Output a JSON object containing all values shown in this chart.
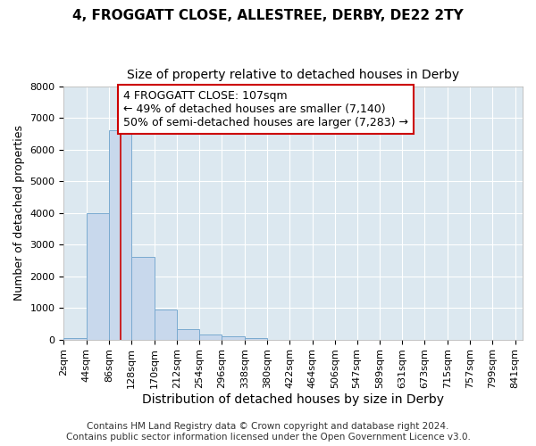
{
  "title": "4, FROGGATT CLOSE, ALLESTREE, DERBY, DE22 2TY",
  "subtitle": "Size of property relative to detached houses in Derby",
  "xlabel": "Distribution of detached houses by size in Derby",
  "ylabel": "Number of detached properties",
  "bar_left_edges": [
    2,
    44,
    86,
    128,
    170,
    212,
    254,
    296,
    338,
    380,
    422,
    464,
    506,
    547,
    589,
    631,
    673,
    715,
    757,
    799
  ],
  "bar_widths": [
    42,
    42,
    42,
    42,
    42,
    42,
    42,
    42,
    42,
    42,
    42,
    42,
    41,
    42,
    42,
    42,
    42,
    42,
    42,
    42
  ],
  "bar_heights": [
    50,
    4000,
    6600,
    2600,
    950,
    330,
    150,
    100,
    50,
    0,
    0,
    0,
    0,
    0,
    0,
    0,
    0,
    0,
    0,
    0
  ],
  "bar_color": "#c8d8ec",
  "bar_edge_color": "#7aaad0",
  "vline_x": 107,
  "vline_color": "#cc0000",
  "annotation_text": "4 FROGGATT CLOSE: 107sqm\n← 49% of detached houses are smaller (7,140)\n50% of semi-detached houses are larger (7,283) →",
  "annotation_box_facecolor": "#ffffff",
  "annotation_box_edgecolor": "#cc0000",
  "ylim": [
    0,
    8000
  ],
  "yticks": [
    0,
    1000,
    2000,
    3000,
    4000,
    5000,
    6000,
    7000,
    8000
  ],
  "x_tick_labels": [
    "2sqm",
    "44sqm",
    "86sqm",
    "128sqm",
    "170sqm",
    "212sqm",
    "254sqm",
    "296sqm",
    "338sqm",
    "380sqm",
    "422sqm",
    "464sqm",
    "506sqm",
    "547sqm",
    "589sqm",
    "631sqm",
    "673sqm",
    "715sqm",
    "757sqm",
    "799sqm",
    "841sqm"
  ],
  "x_tick_positions": [
    2,
    44,
    86,
    128,
    170,
    212,
    254,
    296,
    338,
    380,
    422,
    464,
    506,
    547,
    589,
    631,
    673,
    715,
    757,
    799,
    841
  ],
  "fig_bg_color": "#ffffff",
  "plot_bg_color": "#dce8f0",
  "grid_color": "#ffffff",
  "title_fontsize": 11,
  "subtitle_fontsize": 10,
  "xlabel_fontsize": 10,
  "ylabel_fontsize": 9,
  "tick_fontsize": 8,
  "footer_fontsize": 7.5,
  "annotation_fontsize": 9,
  "footer_text": "Contains HM Land Registry data © Crown copyright and database right 2024.\nContains public sector information licensed under the Open Government Licence v3.0."
}
